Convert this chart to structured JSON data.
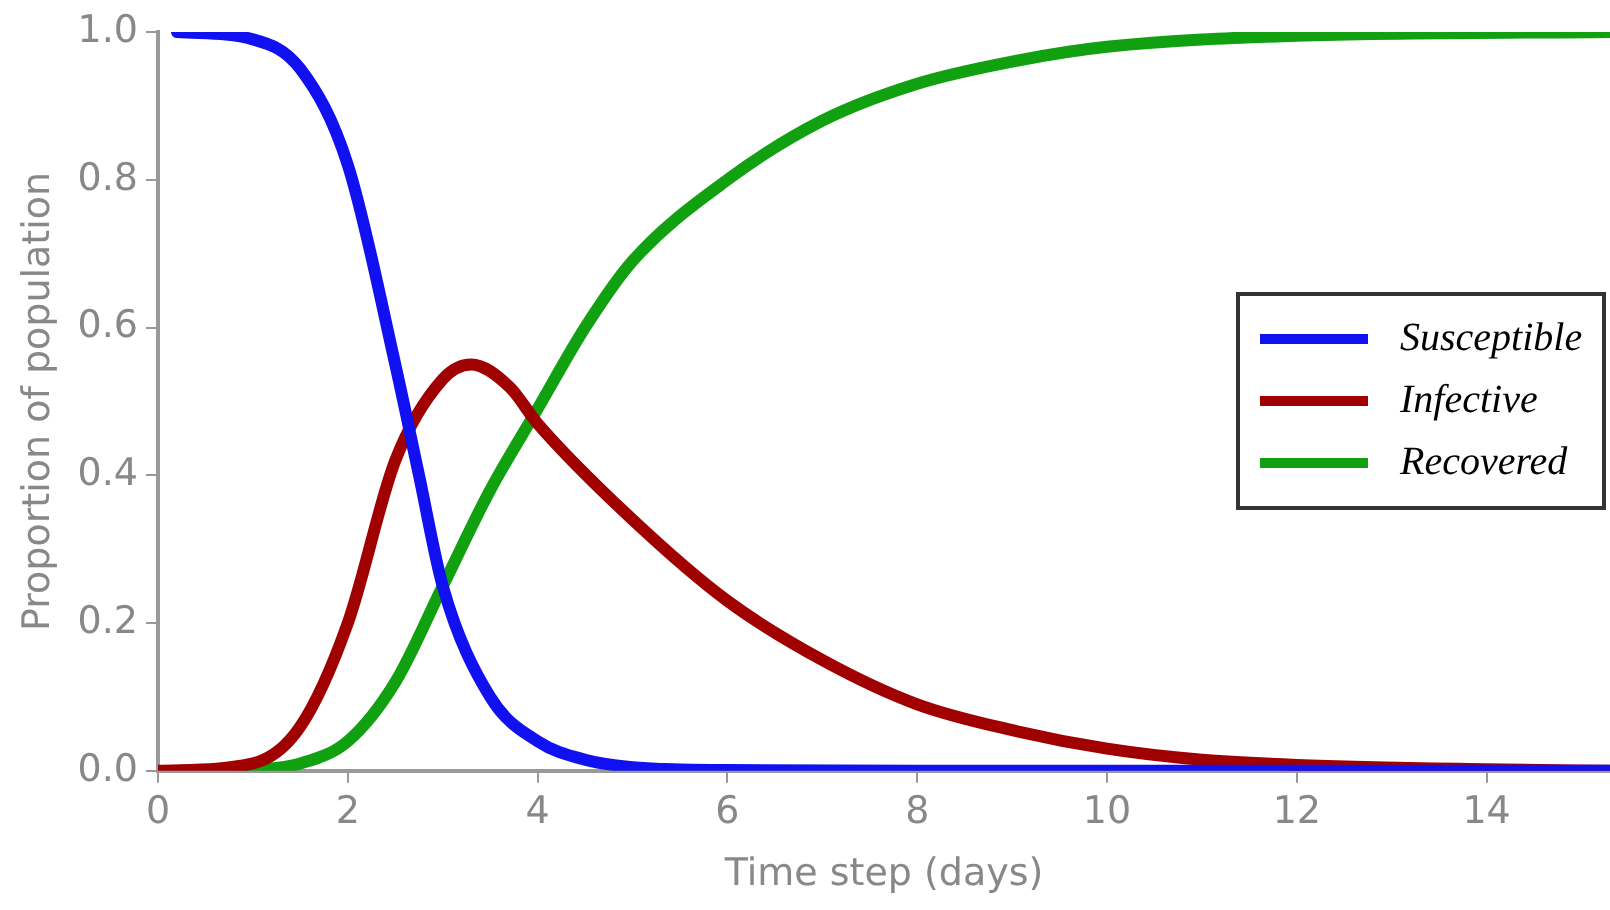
{
  "chart_data": {
    "type": "line",
    "xlabel": "Time step (days)",
    "ylabel": "Proportion of population",
    "xlim": [
      0,
      15.3
    ],
    "xticks": [
      0,
      2,
      4,
      6,
      8,
      10,
      12,
      14
    ],
    "ylim": [
      0,
      1
    ],
    "yticks": [
      {
        "value": 0,
        "label": "0.0"
      },
      {
        "value": 0.2,
        "label": "0.2"
      },
      {
        "value": 0.4,
        "label": "0.4"
      },
      {
        "value": 0.6,
        "label": "0.6"
      },
      {
        "value": 0.8,
        "label": "0.8"
      },
      {
        "value": 1,
        "label": "1.0"
      }
    ],
    "grid": false,
    "legend": "right",
    "marker": "none",
    "line_style": "solid",
    "series": [
      {
        "name": "Susceptible",
        "color": "#1010f0",
        "x": [
          0.2,
          1,
          1.5,
          2,
          2.5,
          2.75,
          3,
          3.5,
          4,
          4.5,
          5,
          6,
          8,
          15.3
        ],
        "values": [
          1,
          0.99,
          0.95,
          0.82,
          0.55,
          0.4,
          0.25,
          0.1,
          0.04,
          0.015,
          0.005,
          0.001,
          0,
          0
        ]
      },
      {
        "name": "Infective",
        "color": "#a00000",
        "x": [
          0,
          1,
          1.5,
          2,
          2.5,
          3,
          3.3,
          3.7,
          4,
          5,
          6,
          7,
          8,
          9,
          10,
          11,
          12,
          14,
          15.3
        ],
        "values": [
          0,
          0.01,
          0.06,
          0.2,
          0.42,
          0.53,
          0.55,
          0.52,
          0.47,
          0.34,
          0.23,
          0.15,
          0.09,
          0.055,
          0.03,
          0.015,
          0.008,
          0.002,
          0
        ]
      },
      {
        "name": "Recovered",
        "color": "#10a010",
        "x": [
          0.9,
          1.5,
          2,
          2.5,
          3,
          3.5,
          4,
          4.5,
          5,
          6,
          7,
          8,
          9,
          10,
          12,
          15.3
        ],
        "values": [
          0,
          0.01,
          0.04,
          0.12,
          0.25,
          0.38,
          0.49,
          0.6,
          0.69,
          0.8,
          0.88,
          0.93,
          0.96,
          0.98,
          0.995,
          1
        ]
      }
    ]
  }
}
